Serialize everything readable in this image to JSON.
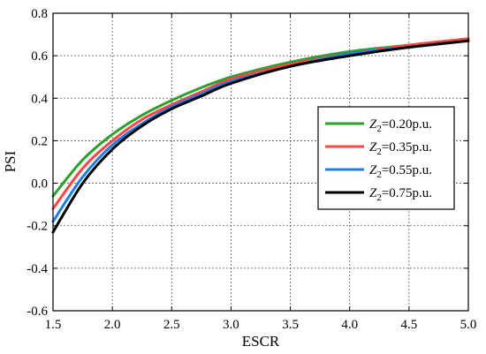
{
  "chart_data": {
    "type": "line",
    "title": "",
    "xlabel": "ESCR",
    "ylabel": "PSI",
    "xlim": [
      1.5,
      5.0
    ],
    "ylim": [
      -0.6,
      0.8
    ],
    "grid": true,
    "legend_position": "right",
    "x_ticks": [
      "1.5",
      "2.0",
      "2.5",
      "3.0",
      "3.5",
      "4.0",
      "4.5",
      "5.0"
    ],
    "y_ticks": [
      "-0.6",
      "-0.4",
      "-0.2",
      "0.0",
      "0.2",
      "0.4",
      "0.6",
      "0.8"
    ],
    "x": [
      1.5,
      1.75,
      2.0,
      2.25,
      2.5,
      2.75,
      3.0,
      3.5,
      4.0,
      4.5,
      5.0
    ],
    "series": [
      {
        "name": "0.20p.u.",
        "color": "#2ca02c",
        "values": [
          -0.06,
          0.11,
          0.23,
          0.32,
          0.39,
          0.45,
          0.5,
          0.57,
          0.62,
          0.65,
          0.68
        ]
      },
      {
        "name": "0.35p.u.",
        "color": "#ff4444",
        "values": [
          -0.12,
          0.07,
          0.2,
          0.3,
          0.37,
          0.43,
          0.49,
          0.56,
          0.61,
          0.65,
          0.68
        ]
      },
      {
        "name": "0.55p.u.",
        "color": "#1e7fe0",
        "values": [
          -0.18,
          0.03,
          0.18,
          0.28,
          0.36,
          0.42,
          0.48,
          0.55,
          0.61,
          0.64,
          0.67
        ]
      },
      {
        "name": "0.75p.u.",
        "color": "#000000",
        "values": [
          -0.23,
          0.0,
          0.16,
          0.27,
          0.35,
          0.41,
          0.47,
          0.55,
          0.6,
          0.64,
          0.67
        ]
      }
    ],
    "legend_prefix": "Z",
    "legend_subscript": "2",
    "legend_equals": "="
  }
}
